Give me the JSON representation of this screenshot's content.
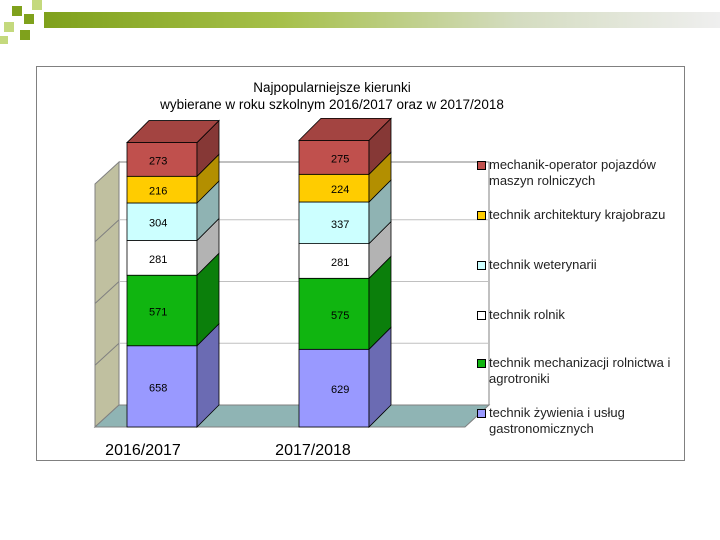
{
  "colors": {
    "green_dark": "#7FA11C",
    "green_light": "#C4D97D",
    "gradient_end": "#ECECEC"
  },
  "chart_data": {
    "type": "bar",
    "stacked": true,
    "three_d": true,
    "title": "Najpopularniejsze kierunki wybierane w roku szkolnym 2016/2017 oraz w 2017/2018",
    "title_lines": [
      "Najpopularniejsze kierunki",
      "wybierane w roku szkolnym 2016/2017 oraz w 2017/2018"
    ],
    "categories": [
      "2016/2017",
      "2017/2018"
    ],
    "legend_position": "right",
    "grid": true,
    "series": [
      {
        "name": "technik żywienia i usług gastronomicznych",
        "values": [
          658,
          629
        ],
        "color": "#9999FF"
      },
      {
        "name": "technik mechanizacji rolnictwa i agrotroniki",
        "values": [
          571,
          575
        ],
        "color": "#10B510"
      },
      {
        "name": "technik rolnik",
        "values": [
          281,
          281
        ],
        "color": "#FFFFFF"
      },
      {
        "name": "technik weterynarii",
        "values": [
          304,
          337
        ],
        "color": "#CCFFFF"
      },
      {
        "name": "technik architektury krajobrazu",
        "values": [
          216,
          224
        ],
        "color": "#FFCC00"
      },
      {
        "name": "mechanik-operator pojazdów maszyn rolniczych",
        "values": [
          273,
          275
        ],
        "color": "#C0504D"
      }
    ]
  }
}
